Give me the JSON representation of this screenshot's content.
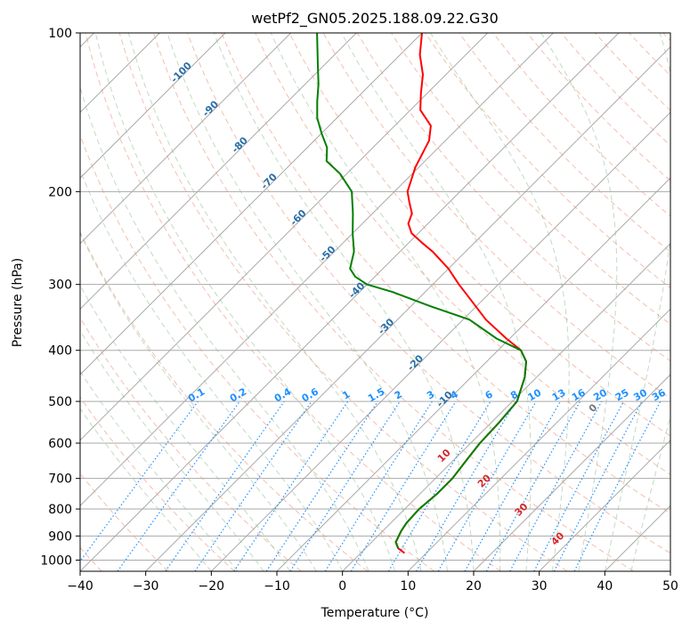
{
  "chart_data": {
    "type": "line",
    "diagram": "skew-T log-P",
    "title": "wetPf2_GN05.2025.188.09.22.G30",
    "xlabel": "Temperature (°C)",
    "ylabel": "Pressure (hPa)",
    "xlim": [
      -40,
      50
    ],
    "ylim": [
      1050,
      100
    ],
    "y_scale": "log",
    "x_ticks": [
      -40,
      -30,
      -20,
      -10,
      0,
      10,
      20,
      30,
      40,
      50
    ],
    "y_ticks": [
      100,
      200,
      300,
      400,
      500,
      600,
      700,
      800,
      900,
      1000
    ],
    "grid": true,
    "series": [
      {
        "color": "#ff0000",
        "points": [
          [
            970,
            6.7
          ],
          [
            950,
            5.0
          ],
          [
            925,
            3.7
          ],
          [
            900,
            3.2
          ],
          [
            880,
            2.8
          ],
          [
            850,
            2.4
          ],
          [
            800,
            2.2
          ],
          [
            750,
            2.6
          ],
          [
            700,
            2.6
          ],
          [
            650,
            2.0
          ],
          [
            600,
            1.4
          ],
          [
            550,
            1.2
          ],
          [
            500,
            0.7
          ],
          [
            450,
            -1.8
          ],
          [
            420,
            -4.0
          ],
          [
            400,
            -6.5
          ],
          [
            380,
            -10.5
          ],
          [
            350,
            -16.5
          ],
          [
            320,
            -22.0
          ],
          [
            300,
            -26.0
          ],
          [
            280,
            -30.0
          ],
          [
            260,
            -35.0
          ],
          [
            250,
            -38.0
          ],
          [
            240,
            -41.0
          ],
          [
            230,
            -43.0
          ],
          [
            220,
            -44.0
          ],
          [
            210,
            -46.0
          ],
          [
            200,
            -48.0
          ],
          [
            180,
            -50.5
          ],
          [
            160,
            -52.5
          ],
          [
            150,
            -54.5
          ],
          [
            140,
            -58.5
          ],
          [
            130,
            -61.0
          ],
          [
            120,
            -63.5
          ],
          [
            110,
            -67.0
          ],
          [
            100,
            -70.0
          ]
        ]
      },
      {
        "color": "#008000",
        "points": [
          [
            950,
            5.0
          ],
          [
            925,
            3.7
          ],
          [
            900,
            3.2
          ],
          [
            880,
            2.8
          ],
          [
            850,
            2.4
          ],
          [
            800,
            2.2
          ],
          [
            750,
            2.6
          ],
          [
            700,
            2.6
          ],
          [
            650,
            2.0
          ],
          [
            600,
            1.4
          ],
          [
            550,
            1.2
          ],
          [
            500,
            0.7
          ],
          [
            450,
            -1.8
          ],
          [
            420,
            -4.0
          ],
          [
            400,
            -6.5
          ],
          [
            380,
            -12.0
          ],
          [
            350,
            -19.0
          ],
          [
            330,
            -27.0
          ],
          [
            310,
            -35.0
          ],
          [
            300,
            -40.0
          ],
          [
            290,
            -43.0
          ],
          [
            280,
            -45.0
          ],
          [
            260,
            -47.0
          ],
          [
            240,
            -50.0
          ],
          [
            220,
            -53.0
          ],
          [
            200,
            -56.5
          ],
          [
            185,
            -61.0
          ],
          [
            175,
            -65.0
          ],
          [
            165,
            -67.0
          ],
          [
            155,
            -70.0
          ],
          [
            145,
            -73.0
          ],
          [
            135,
            -75.5
          ],
          [
            125,
            -78.0
          ],
          [
            115,
            -81.0
          ],
          [
            100,
            -86.0
          ]
        ]
      }
    ],
    "dry_adiabat_labels": [
      "-100",
      "-90",
      "-80",
      "-70",
      "-60",
      "-50",
      "-40",
      "-30",
      "-20",
      "-10"
    ],
    "mixing_ratio_labels": [
      "0.1",
      "0.2",
      "0.4",
      "0.6",
      "1",
      "1.5",
      "2",
      "3",
      "4",
      "6",
      "8",
      "10",
      "13",
      "16",
      "20",
      "25",
      "30",
      "36"
    ],
    "moist_adiabat_labels": [
      "10",
      "20",
      "30",
      "40"
    ],
    "zero_label": "0",
    "colors": {
      "temperature": "#ff0000",
      "dewpoint": "#008000",
      "dry_adiabats": "#e9967a",
      "moist_adiabats": "#8fbc8f",
      "mixing_ratio": "#1e90ff",
      "isotherms": "#aaaaaa"
    }
  }
}
